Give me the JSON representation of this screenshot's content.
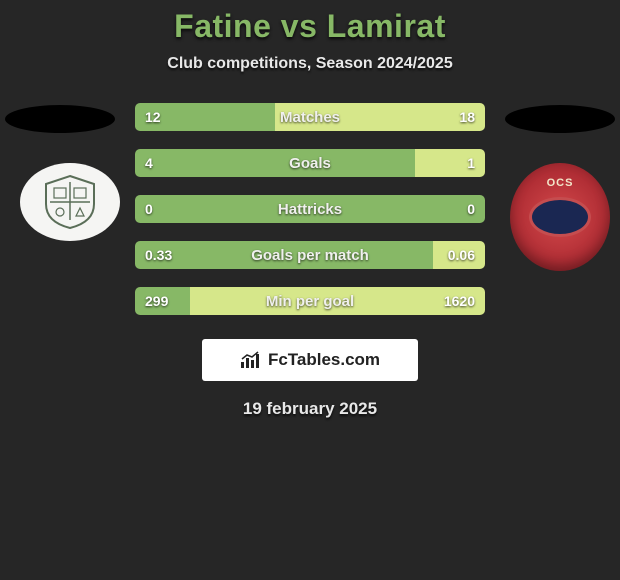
{
  "title": "Fatine vs Lamirat",
  "subtitle": "Club competitions, Season 2024/2025",
  "date": "19 february 2025",
  "brand": "FcTables.com",
  "colors": {
    "bg": "#262626",
    "title": "#87b866",
    "bar_left": "#87b866",
    "bar_right": "#d6e78a",
    "bar_full": "#87b866"
  },
  "badges": {
    "left": {
      "fill": "#f5f5f3",
      "crest_color": "#5a6e58"
    },
    "right": {
      "text": "OCS",
      "ring": "#c54d4f",
      "inner": "#1a2752"
    }
  },
  "bars": [
    {
      "label": "Matches",
      "left_value": "12",
      "right_value": "18",
      "left_pct": 40,
      "right_pct": 60,
      "left_color": "#87b866",
      "right_color": "#d6e78a"
    },
    {
      "label": "Goals",
      "left_value": "4",
      "right_value": "1",
      "left_pct": 80,
      "right_pct": 20,
      "left_color": "#87b866",
      "right_color": "#d6e78a"
    },
    {
      "label": "Hattricks",
      "left_value": "0",
      "right_value": "0",
      "left_pct": 100,
      "right_pct": 0,
      "left_color": "#87b866",
      "right_color": "#87b866"
    },
    {
      "label": "Goals per match",
      "left_value": "0.33",
      "right_value": "0.06",
      "left_pct": 85,
      "right_pct": 15,
      "left_color": "#87b866",
      "right_color": "#d6e78a"
    },
    {
      "label": "Min per goal",
      "left_value": "299",
      "right_value": "1620",
      "left_pct": 15.6,
      "right_pct": 84.4,
      "left_color": "#87b866",
      "right_color": "#d6e78a"
    }
  ]
}
